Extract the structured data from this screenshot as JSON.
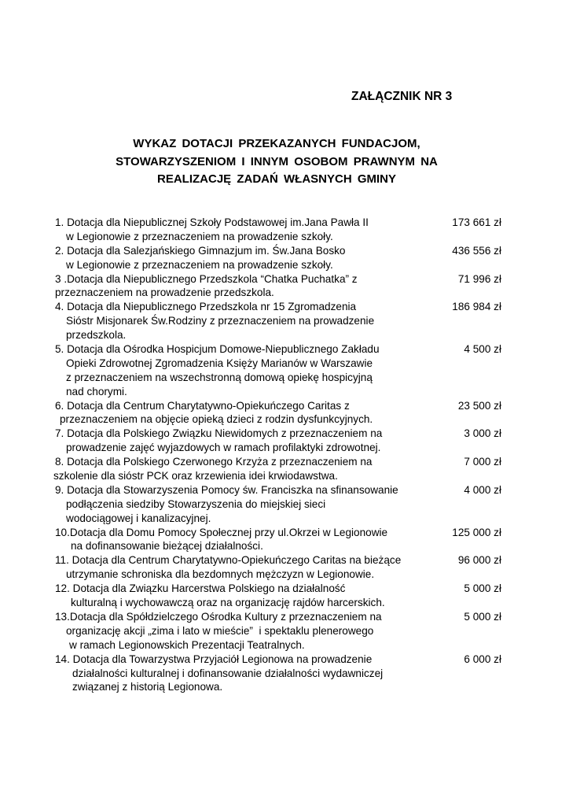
{
  "annex_title": "ZAŁĄCZNIK NR 3",
  "heading": [
    "WYKAZ  DOTACJI  PRZEKAZANYCH  FUNDACJOM,",
    "STOWARZYSZENIOM I  INNYM  OSOBOM  PRAWNYM  NA",
    "REALIZACJĘ  ZADAŃ  WŁASNYCH  GMINY"
  ],
  "items": [
    {
      "lines": [
        "1. Dotacja dla Niepublicznej Szkoły Podstawowej im.Jana Pawła II",
        "w Legionowie z przeznaczeniem na prowadzenie szkoły."
      ],
      "amount": "173 661 zł"
    },
    {
      "lines": [
        "2. Dotacja dla Salezjańskiego Gimnazjum im. Św.Jana Bosko",
        "w Legionowie z przeznaczeniem na prowadzenie szkoły."
      ],
      "amount": "436 556 zł"
    },
    {
      "lines": [
        "3 .Dotacja dla Niepublicznego Przedszkola “Chatka Puchatka” z",
        "przeznaczeniem na prowadzenie przedszkola."
      ],
      "amount": "71 996 zł"
    },
    {
      "lines": [
        "4. Dotacja dla Niepublicznego Przedszkola nr 15 Zgromadzenia",
        "Sióstr Misjonarek Św.Rodziny z przeznaczeniem na prowadzenie",
        "przedszkola."
      ],
      "amount": "186 984 zł"
    },
    {
      "lines": [
        "5. Dotacja dla Ośrodka Hospicjum Domowe-Niepublicznego Zakładu",
        "Opieki Zdrowotnej Zgromadzenia Księży Marianów w Warszawie",
        "z przeznaczeniem na wszechstronną domową opiekę hospicyjną",
        "nad chorymi."
      ],
      "amount": "4 500 zł"
    },
    {
      "lines": [
        "6. Dotacja dla Centrum Charytatywno-Opiekuńczego Caritas z",
        "przeznaczeniem na objęcie opieką dzieci z rodzin dysfunkcyjnych."
      ],
      "amount": "23 500 zł"
    },
    {
      "lines": [
        "7. Dotacja dla Polskiego Związku Niewidomych z przeznaczeniem na",
        "prowadzenie zajęć wyjazdowych w ramach profilaktyki zdrowotnej."
      ],
      "amount": "3 000 zł"
    },
    {
      "lines": [
        "8. Dotacja dla Polskiego Czerwonego Krzyża z przeznaczeniem na",
        "szkolenie dla sióstr PCK oraz krzewienia idei krwiodawstwa."
      ],
      "amount": "7 000 zł"
    },
    {
      "lines": [
        "9. Dotacja dla Stowarzyszenia Pomocy św. Franciszka na sfinansowanie",
        "podłączenia siedziby Stowarzyszenia do miejskiej sieci",
        "wodociągowej i kanalizacyjnej."
      ],
      "amount": "4 000 zł"
    },
    {
      "lines": [
        "10.Dotacja dla Domu Pomocy Społecznej przy ul.Okrzei w Legionowie",
        "na dofinansowanie bieżącej działalności."
      ],
      "amount": "125 000 zł"
    },
    {
      "lines": [
        "11. Dotacja dla Centrum Charytatywno-Opiekuńczego Caritas na bieżące",
        "utrzymanie schroniska dla bezdomnych mężczyzn w Legionowie."
      ],
      "amount": "96 000 zł"
    },
    {
      "lines": [
        "12. Dotacja dla Związku Harcerstwa Polskiego na działalność",
        "kulturalną i wychowawczą oraz na organizację rajdów harcerskich."
      ],
      "amount": "5 000 zł"
    },
    {
      "lines": [
        "13.Dotacja dla Spółdzielczego Ośrodka Kultury z przeznaczeniem na",
        "organizację akcji „zima i lato w mieście”  i spektaklu plenerowego",
        "w ramach Legionowskich Prezentacji Teatralnych."
      ],
      "amount": "5 000 zł"
    },
    {
      "lines": [
        "14. Dotacja dla Towarzystwa Przyjaciół Legionowa na prowadzenie",
        "działalności kulturalnej i dofinansowanie działalności wydawniczej",
        "związanej z historią Legionowa."
      ],
      "amount": "6 000 zł"
    }
  ]
}
